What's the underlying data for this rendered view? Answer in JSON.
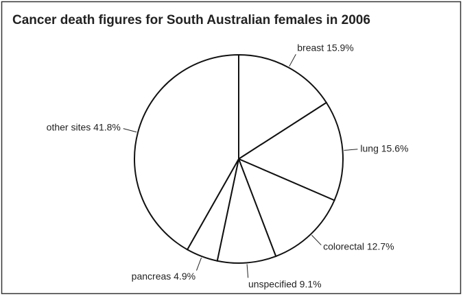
{
  "chart_data": {
    "type": "pie",
    "title": "Cancer death figures for South Australian females in 2006",
    "categories": [
      "breast",
      "lung",
      "colorectal",
      "unspecified",
      "pancreas",
      "other sites"
    ],
    "values": [
      15.9,
      15.6,
      12.7,
      9.1,
      4.9,
      41.8
    ],
    "value_labels": [
      "15.9%",
      "15.6%",
      "12.7%",
      "9.1%",
      "4.9%",
      "41.8%"
    ],
    "color": "#ffffff"
  }
}
